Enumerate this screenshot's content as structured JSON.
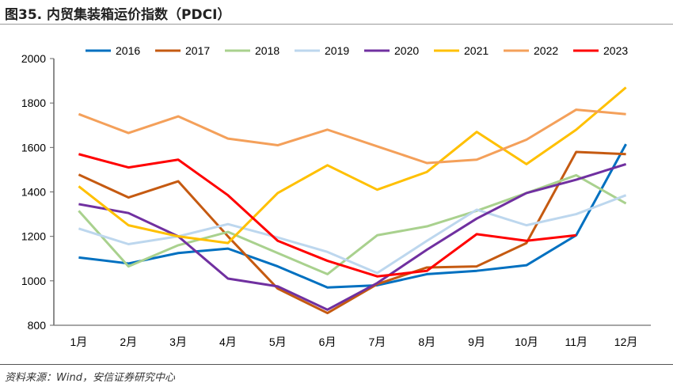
{
  "title": "图35. 内贸集装箱运价指数（PDCI）",
  "source": "资料来源：Wind，安信证券研究中心",
  "chart_data": {
    "type": "line",
    "title": "图35. 内贸集装箱运价指数（PDCI）",
    "xlabel": "",
    "ylabel": "",
    "ylim": [
      800,
      2000
    ],
    "yticks": [
      800,
      1000,
      1200,
      1400,
      1600,
      1800,
      2000
    ],
    "grid": false,
    "legend_placement": "top",
    "categories": [
      "1月",
      "2月",
      "3月",
      "4月",
      "5月",
      "6月",
      "7月",
      "8月",
      "9月",
      "10月",
      "11月",
      "12月"
    ],
    "series": [
      {
        "name": "2016",
        "color": "#0070C0",
        "values": [
          1105,
          1078,
          1125,
          1145,
          1065,
          970,
          980,
          1030,
          1045,
          1070,
          1205,
          1615
        ]
      },
      {
        "name": "2017",
        "color": "#C55A11",
        "values": [
          1478,
          1375,
          1448,
          1200,
          965,
          855,
          985,
          1060,
          1065,
          1170,
          1580,
          1570
        ]
      },
      {
        "name": "2018",
        "color": "#A9D18E",
        "values": [
          1315,
          1065,
          1160,
          1220,
          1125,
          1030,
          1205,
          1245,
          1315,
          1395,
          1475,
          1348
        ]
      },
      {
        "name": "2019",
        "color": "#BDD7EE",
        "values": [
          1235,
          1165,
          1200,
          1255,
          1195,
          1130,
          1035,
          1180,
          1320,
          1250,
          1300,
          1385
        ]
      },
      {
        "name": "2020",
        "color": "#7030A0",
        "values": [
          1345,
          1305,
          1200,
          1010,
          975,
          870,
          990,
          1140,
          1280,
          1395,
          1455,
          1525
        ]
      },
      {
        "name": "2021",
        "color": "#FFC000",
        "values": [
          1425,
          1250,
          1200,
          1170,
          1395,
          1520,
          1410,
          1490,
          1670,
          1525,
          1680,
          1870
        ]
      },
      {
        "name": "2022",
        "color": "#F4A05A",
        "values": [
          1750,
          1665,
          1740,
          1640,
          1610,
          1680,
          1605,
          1530,
          1545,
          1635,
          1770,
          1750
        ]
      },
      {
        "name": "2023",
        "color": "#FF0000",
        "values": [
          1570,
          1510,
          1545,
          1385,
          1180,
          1090,
          1020,
          1045,
          1210,
          1180,
          1205,
          null
        ]
      }
    ]
  }
}
